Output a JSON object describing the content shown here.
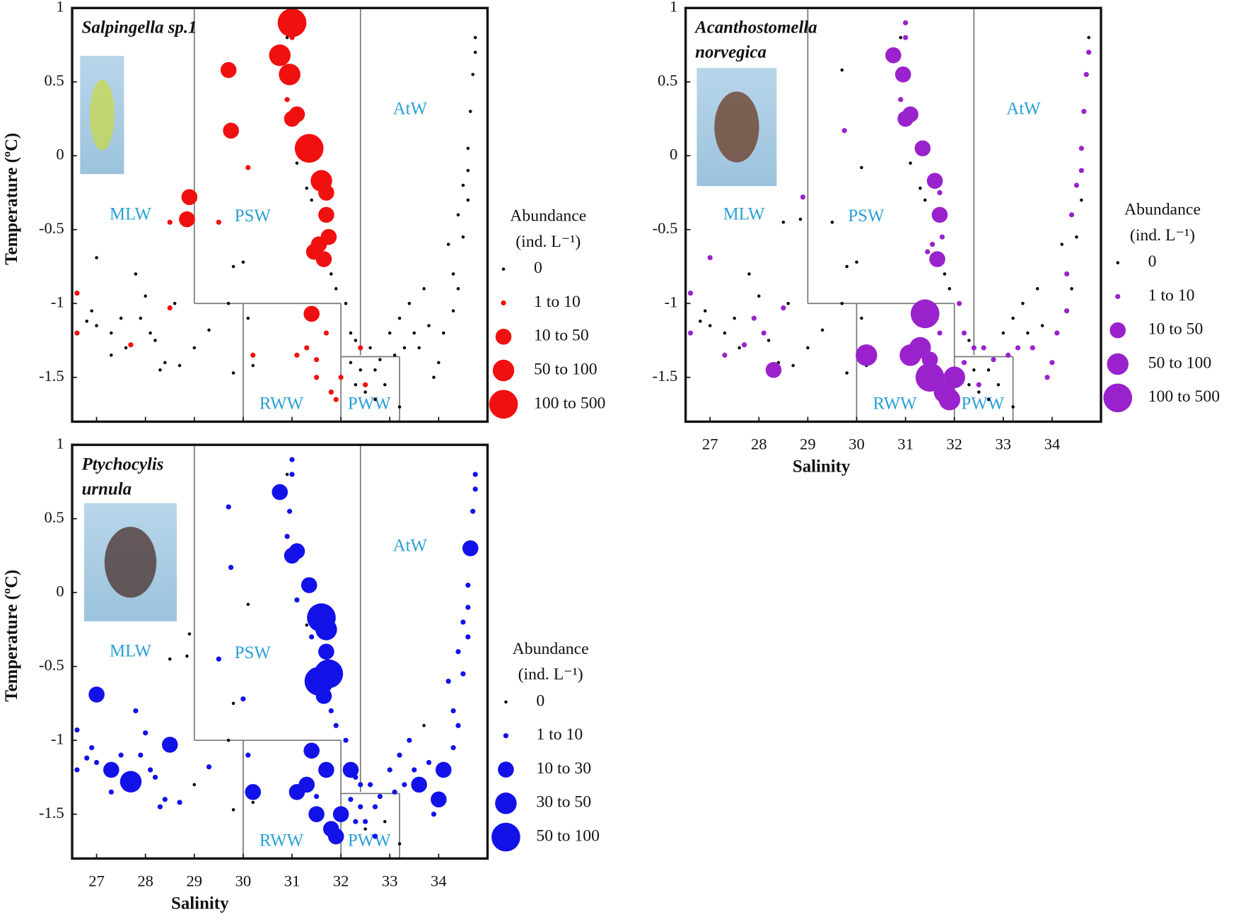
{
  "water_masses": [
    "MLW",
    "PSW",
    "AtW",
    "RWW",
    "PWW"
  ],
  "water_mass_boundaries": [
    [
      [
        29,
        1
      ],
      [
        29,
        -1
      ]
    ],
    [
      [
        29,
        -1
      ],
      [
        32,
        -1
      ]
    ],
    [
      [
        32.4,
        1
      ],
      [
        32.4,
        -1.35
      ]
    ],
    [
      [
        30,
        -1
      ],
      [
        30,
        -1.8
      ]
    ],
    [
      [
        32,
        -1
      ],
      [
        32,
        -1.8
      ]
    ],
    [
      [
        32,
        -1.36
      ],
      [
        33.2,
        -1.36
      ]
    ],
    [
      [
        33.2,
        -1.36
      ],
      [
        33.2,
        -1.8
      ]
    ]
  ],
  "chart_data": [
    {
      "type": "scatter",
      "title": [
        "Salpingella sp.1"
      ],
      "ylabel": "Temperature (ºC)",
      "color": "#f01010",
      "zero_color": "#000000",
      "legend_title": "Abundance",
      "legend_subtitle": "(ind. L⁻¹)",
      "size_classes": [
        "0",
        "1 to 10",
        "10 to 50",
        "50 to 100",
        "100 to 500"
      ],
      "xlim": [
        26.5,
        35
      ],
      "ylim": [
        -1.8,
        1
      ],
      "xticks": [
        27,
        28,
        29,
        30,
        31,
        32,
        33,
        34
      ],
      "yticks": [
        1,
        0.5,
        0,
        -0.5,
        -1,
        -1.5
      ],
      "x": [
        31.0,
        30.75,
        30.95,
        29.7,
        29.75,
        31.0,
        31.1,
        31.35,
        31.6,
        31.7,
        31.7,
        31.75,
        31.65,
        31.45,
        31.4,
        28.9,
        28.85,
        31.55,
        31.0,
        30.9,
        30.1,
        29.5,
        28.5,
        26.6,
        26.6,
        27.7,
        28.5,
        30.2,
        31.1,
        31.3,
        31.5,
        31.8,
        32.0,
        32.5,
        32.4,
        31.9,
        31.7,
        31.5,
        27.0,
        26.9,
        27.0,
        26.8,
        27.3,
        27.3,
        27.5,
        27.6,
        27.8,
        27.9,
        28.0,
        28.1,
        28.2,
        28.3,
        28.4,
        28.7,
        28.6,
        29.0,
        29.3,
        29.7,
        29.8,
        29.8,
        30.0,
        30.1,
        30.2,
        30.9,
        31.1,
        31.3,
        31.4,
        31.8,
        31.9,
        32.1,
        32.2,
        32.3,
        32.2,
        32.4,
        32.6,
        32.7,
        32.8,
        32.9,
        33.0,
        33.1,
        33.2,
        33.3,
        33.4,
        33.5,
        33.6,
        33.7,
        33.8,
        33.9,
        34.0,
        34.1,
        34.2,
        34.3,
        34.3,
        34.4,
        34.4,
        34.5,
        34.5,
        34.6,
        34.6,
        34.6,
        34.65,
        34.7,
        34.75,
        34.75,
        33.2,
        32.7,
        32.5,
        32.3
      ],
      "y": [
        0.9,
        0.68,
        0.55,
        0.58,
        0.17,
        0.25,
        0.28,
        0.05,
        -0.17,
        -0.25,
        -0.4,
        -0.55,
        -0.7,
        -0.65,
        -1.07,
        -0.28,
        -0.43,
        -0.6,
        0.8,
        0.38,
        -0.08,
        -0.45,
        -0.45,
        -0.93,
        -1.2,
        -1.28,
        -1.03,
        -1.35,
        -1.35,
        -1.3,
        -1.5,
        -1.6,
        -1.5,
        -1.55,
        -1.3,
        -1.65,
        -1.2,
        -1.38,
        -0.69,
        -1.05,
        -1.15,
        -1.12,
        -1.2,
        -1.35,
        -1.1,
        -1.3,
        -0.8,
        -1.1,
        -0.95,
        -1.2,
        -1.25,
        -1.45,
        -1.4,
        -1.42,
        -1.0,
        -1.3,
        -1.18,
        -1.0,
        -1.47,
        -0.75,
        -0.72,
        -1.1,
        -1.42,
        0.8,
        -0.05,
        -0.22,
        -0.3,
        -0.8,
        -0.9,
        -1.0,
        -1.2,
        -1.25,
        -1.4,
        -1.45,
        -1.3,
        -1.45,
        -1.38,
        -1.55,
        -1.2,
        -1.35,
        -1.1,
        -1.3,
        -1.0,
        -1.2,
        -1.3,
        -0.9,
        -1.15,
        -1.5,
        -1.4,
        -1.2,
        -0.6,
        -0.8,
        -1.05,
        -0.9,
        -0.4,
        -0.2,
        -0.55,
        -0.1,
        0.05,
        -0.3,
        0.3,
        0.55,
        0.7,
        0.8,
        -1.7,
        -1.65,
        -1.6,
        -1.55
      ],
      "size": [
        4,
        3,
        3,
        2,
        2,
        2,
        2,
        4,
        3,
        2,
        2,
        2,
        2,
        2,
        2,
        2,
        2,
        2,
        1,
        1,
        1,
        1,
        1,
        1,
        1,
        1,
        1,
        1,
        1,
        1,
        1,
        1,
        1,
        1,
        1,
        1,
        1,
        1,
        0,
        0,
        0,
        0,
        0,
        0,
        0,
        0,
        0,
        0,
        0,
        0,
        0,
        0,
        0,
        0,
        0,
        0,
        0,
        0,
        0,
        0,
        0,
        0,
        0,
        0,
        0,
        0,
        0,
        0,
        0,
        0,
        0,
        0,
        0,
        0,
        0,
        0,
        0,
        0,
        0,
        0,
        0,
        0,
        0,
        0,
        0,
        0,
        0,
        0,
        0,
        0,
        0,
        0,
        0,
        0,
        0,
        0,
        0,
        0,
        0,
        0,
        0,
        0,
        0,
        0,
        0,
        0,
        0,
        0
      ]
    },
    {
      "type": "scatter",
      "title": [
        "Acanthostomella",
        "norvegica"
      ],
      "xlabel": "Salinity",
      "color": "#9a22cc",
      "zero_color": "#000000",
      "legend_title": "Abundance",
      "legend_subtitle": "(ind. L⁻¹)",
      "size_classes": [
        "0",
        "1 to 10",
        "10 to 50",
        "50 to 100",
        "100 to 500"
      ],
      "xlim": [
        26.5,
        35
      ],
      "ylim": [
        -1.8,
        1
      ],
      "xticks": [
        27,
        28,
        29,
        30,
        31,
        32,
        33,
        34
      ],
      "yticks": [
        1,
        0.5,
        0,
        -0.5,
        -1,
        -1.5
      ],
      "x": [
        31.0,
        30.75,
        30.95,
        29.7,
        29.75,
        31.0,
        31.1,
        31.35,
        31.6,
        31.7,
        31.7,
        31.75,
        31.65,
        31.45,
        31.4,
        28.9,
        28.85,
        31.55,
        31.0,
        30.9,
        30.1,
        29.5,
        28.5,
        26.6,
        26.6,
        27.7,
        28.5,
        30.2,
        31.1,
        31.3,
        31.5,
        31.8,
        32.0,
        32.5,
        32.4,
        31.9,
        31.7,
        31.5,
        27.0,
        26.9,
        27.0,
        26.8,
        27.3,
        27.3,
        27.5,
        27.6,
        27.8,
        27.9,
        28.0,
        28.1,
        28.2,
        28.3,
        28.4,
        28.7,
        28.6,
        29.0,
        29.3,
        29.7,
        29.8,
        29.8,
        30.0,
        30.1,
        30.2,
        30.9,
        31.1,
        31.3,
        31.4,
        31.8,
        31.9,
        32.1,
        32.2,
        32.3,
        32.2,
        32.4,
        32.6,
        32.7,
        32.8,
        32.9,
        33.0,
        33.1,
        33.2,
        33.3,
        33.4,
        33.5,
        33.6,
        33.7,
        33.8,
        33.9,
        34.0,
        34.1,
        34.2,
        34.3,
        34.3,
        34.4,
        34.4,
        34.5,
        34.5,
        34.6,
        34.6,
        34.6,
        34.65,
        34.7,
        34.75,
        34.75,
        33.2,
        32.7,
        32.5,
        32.3
      ],
      "y": [
        0.9,
        0.68,
        0.55,
        0.58,
        0.17,
        0.25,
        0.28,
        0.05,
        -0.17,
        -0.25,
        -0.4,
        -0.55,
        -0.7,
        -0.65,
        -1.07,
        -0.28,
        -0.43,
        -0.6,
        0.8,
        0.38,
        -0.08,
        -0.45,
        -0.45,
        -0.93,
        -1.2,
        -1.28,
        -1.03,
        -1.35,
        -1.35,
        -1.3,
        -1.5,
        -1.6,
        -1.5,
        -1.55,
        -1.3,
        -1.65,
        -1.2,
        -1.38,
        -0.69,
        -1.05,
        -1.15,
        -1.12,
        -1.2,
        -1.35,
        -1.1,
        -1.3,
        -0.8,
        -1.1,
        -0.95,
        -1.2,
        -1.25,
        -1.45,
        -1.4,
        -1.42,
        -1.0,
        -1.3,
        -1.18,
        -1.0,
        -1.47,
        -0.75,
        -0.72,
        -1.1,
        -1.42,
        0.8,
        -0.05,
        -0.22,
        -0.3,
        -0.8,
        -0.9,
        -1.0,
        -1.2,
        -1.25,
        -1.4,
        -1.45,
        -1.3,
        -1.45,
        -1.38,
        -1.55,
        -1.2,
        -1.35,
        -1.1,
        -1.3,
        -1.0,
        -1.2,
        -1.3,
        -0.9,
        -1.15,
        -1.5,
        -1.4,
        -1.2,
        -0.6,
        -0.8,
        -1.05,
        -0.9,
        -0.4,
        -0.2,
        -0.55,
        -0.1,
        0.05,
        -0.3,
        0.3,
        0.55,
        0.7,
        0.8,
        -1.7,
        -1.65,
        -1.6,
        -1.55
      ],
      "size": [
        1,
        2,
        2,
        0,
        1,
        2,
        2,
        2,
        2,
        1,
        2,
        1,
        2,
        1,
        4,
        1,
        0,
        1,
        1,
        1,
        0,
        0,
        0,
        1,
        1,
        1,
        1,
        3,
        3,
        3,
        4,
        3,
        3,
        1,
        1,
        3,
        1,
        2,
        1,
        0,
        0,
        0,
        0,
        1,
        0,
        0,
        0,
        1,
        0,
        1,
        0,
        2,
        0,
        0,
        0,
        0,
        0,
        0,
        0,
        0,
        0,
        0,
        0,
        0,
        0,
        0,
        0,
        0,
        0,
        1,
        1,
        0,
        1,
        0,
        1,
        0,
        1,
        0,
        0,
        1,
        0,
        1,
        0,
        0,
        1,
        0,
        0,
        1,
        1,
        1,
        0,
        1,
        1,
        0,
        1,
        1,
        0,
        1,
        1,
        0,
        1,
        1,
        1,
        0,
        0,
        0,
        0,
        0
      ]
    },
    {
      "type": "scatter",
      "title": [
        "Ptychocylis",
        "urnula"
      ],
      "xlabel": "Salinity",
      "ylabel": "Temperature (ºC)",
      "color": "#1212e8",
      "zero_color": "#000000",
      "legend_title": "Abundance",
      "legend_subtitle": "(ind. L⁻¹)",
      "size_classes": [
        "0",
        "1 to 10",
        "10 to 30",
        "30 to 50",
        "50 to 100"
      ],
      "xlim": [
        26.5,
        35
      ],
      "ylim": [
        -1.8,
        1
      ],
      "xticks": [
        27,
        28,
        29,
        30,
        31,
        32,
        33,
        34
      ],
      "yticks": [
        1,
        0.5,
        0,
        -0.5,
        -1,
        -1.5
      ],
      "x": [
        31.0,
        30.75,
        30.95,
        29.7,
        29.75,
        31.0,
        31.1,
        31.35,
        31.6,
        31.7,
        31.7,
        31.75,
        31.65,
        31.45,
        31.4,
        28.9,
        28.85,
        31.55,
        31.0,
        30.9,
        30.1,
        29.5,
        28.5,
        26.6,
        26.6,
        27.7,
        28.5,
        30.2,
        31.1,
        31.3,
        31.5,
        31.8,
        32.0,
        32.5,
        32.4,
        31.9,
        31.7,
        31.5,
        27.0,
        26.9,
        27.0,
        26.8,
        27.3,
        27.3,
        27.5,
        27.6,
        27.8,
        27.9,
        28.0,
        28.1,
        28.2,
        28.3,
        28.4,
        28.7,
        28.6,
        29.0,
        29.3,
        29.7,
        29.8,
        29.8,
        30.0,
        30.1,
        30.2,
        30.9,
        31.1,
        31.3,
        31.4,
        31.8,
        31.9,
        32.1,
        32.2,
        32.3,
        32.2,
        32.4,
        32.6,
        32.7,
        32.8,
        32.9,
        33.0,
        33.1,
        33.2,
        33.3,
        33.4,
        33.5,
        33.6,
        33.7,
        33.8,
        33.9,
        34.0,
        34.1,
        34.2,
        34.3,
        34.3,
        34.4,
        34.4,
        34.5,
        34.5,
        34.6,
        34.6,
        34.6,
        34.65,
        34.7,
        34.75,
        34.75,
        33.2,
        32.7,
        32.5,
        32.3
      ],
      "y": [
        0.9,
        0.68,
        0.55,
        0.58,
        0.17,
        0.25,
        0.28,
        0.05,
        -0.17,
        -0.25,
        -0.4,
        -0.55,
        -0.7,
        -0.65,
        -1.07,
        -0.28,
        -0.43,
        -0.6,
        0.8,
        0.38,
        -0.08,
        -0.45,
        -0.45,
        -0.93,
        -1.2,
        -1.28,
        -1.03,
        -1.35,
        -1.35,
        -1.3,
        -1.5,
        -1.6,
        -1.5,
        -1.55,
        -1.3,
        -1.65,
        -1.2,
        -1.38,
        -0.69,
        -1.05,
        -1.15,
        -1.12,
        -1.2,
        -1.35,
        -1.1,
        -1.3,
        -0.8,
        -1.1,
        -0.95,
        -1.2,
        -1.25,
        -1.45,
        -1.4,
        -1.42,
        -1.0,
        -1.3,
        -1.18,
        -1.0,
        -1.47,
        -0.75,
        -0.72,
        -1.1,
        -1.42,
        0.8,
        -0.05,
        -0.22,
        -0.3,
        -0.8,
        -0.9,
        -1.0,
        -1.2,
        -1.25,
        -1.4,
        -1.45,
        -1.3,
        -1.45,
        -1.38,
        -1.55,
        -1.2,
        -1.35,
        -1.1,
        -1.3,
        -1.0,
        -1.2,
        -1.3,
        -0.9,
        -1.15,
        -1.5,
        -1.4,
        -1.2,
        -0.6,
        -0.8,
        -1.05,
        -0.9,
        -0.4,
        -0.2,
        -0.55,
        -0.1,
        0.05,
        -0.3,
        0.3,
        0.55,
        0.7,
        0.8,
        -1.7,
        -1.65,
        -1.6,
        -1.55
      ],
      "size": [
        1,
        2,
        1,
        1,
        1,
        2,
        2,
        2,
        4,
        3,
        2,
        4,
        2,
        1,
        2,
        0,
        0,
        4,
        1,
        1,
        0,
        1,
        0,
        1,
        1,
        3,
        2,
        2,
        2,
        2,
        2,
        2,
        2,
        1,
        1,
        2,
        2,
        1,
        2,
        1,
        1,
        1,
        2,
        1,
        1,
        1,
        1,
        1,
        1,
        1,
        1,
        1,
        1,
        1,
        0,
        0,
        1,
        0,
        0,
        0,
        1,
        1,
        0,
        0,
        1,
        0,
        1,
        1,
        1,
        1,
        2,
        1,
        1,
        1,
        1,
        1,
        1,
        0,
        1,
        1,
        1,
        1,
        1,
        1,
        2,
        0,
        1,
        1,
        2,
        2,
        1,
        1,
        1,
        1,
        1,
        1,
        1,
        1,
        1,
        1,
        2,
        1,
        1,
        1,
        0,
        1,
        0,
        1
      ]
    }
  ]
}
